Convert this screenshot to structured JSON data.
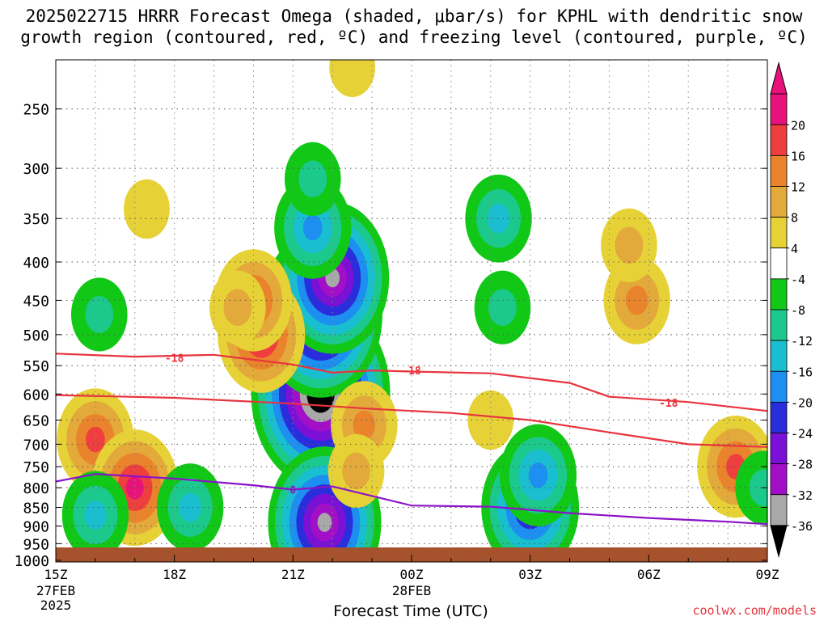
{
  "title_line1": "2025022715 HRRR Forecast Omega (shaded, μbar/s) for KPHL with dendritic snow",
  "title_line2": "growth region (contoured, red, ºC) and freezing level (contoured, purple, ºC)",
  "credit": "coolwx.com/models",
  "colors": {
    "omega_levels": [
      {
        "label": "20",
        "color": "#e8127a"
      },
      {
        "label": "16",
        "color": "#ee3e3e"
      },
      {
        "label": "12",
        "color": "#ea842c"
      },
      {
        "label": "8",
        "color": "#e3a93a"
      },
      {
        "label": "4",
        "color": "#e6d236"
      },
      {
        "label": "-4",
        "color": "#ffffff"
      },
      {
        "label": "-8",
        "color": "#11c817"
      },
      {
        "label": "-12",
        "color": "#1bc98d"
      },
      {
        "label": "-16",
        "color": "#19bfd0"
      },
      {
        "label": "-20",
        "color": "#1d8ff0"
      },
      {
        "label": "-24",
        "color": "#2a2ddc"
      },
      {
        "label": "-28",
        "color": "#7b10d6"
      },
      {
        "label": "-32",
        "color": "#a20fc7"
      },
      {
        "label": "-36",
        "color": "#a8a8a8"
      }
    ],
    "below_min": "#000000",
    "ground": "#a6522c",
    "dgz_line": "#e8343e",
    "freezing_line": "#8b12c8"
  },
  "chart_data": {
    "type": "heatmap",
    "title": "2025022715 HRRR Forecast Omega (shaded, μbar/s) for KPHL with dendritic snow growth region (contoured, red, ºC) and freezing level (contoured, purple, ºC)",
    "xlabel": "Forecast Time (UTC)",
    "ylabel": "",
    "x_ticks": [
      {
        "hour": 0,
        "label": "15Z",
        "sub": [
          "27FEB",
          "2025"
        ]
      },
      {
        "hour": 3,
        "label": "18Z",
        "sub": []
      },
      {
        "hour": 6,
        "label": "21Z",
        "sub": []
      },
      {
        "hour": 9,
        "label": "00Z",
        "sub": [
          "28FEB"
        ]
      },
      {
        "hour": 12,
        "label": "03Z",
        "sub": []
      },
      {
        "hour": 15,
        "label": "06Z",
        "sub": []
      },
      {
        "hour": 18,
        "label": "09Z",
        "sub": []
      }
    ],
    "xlim": [
      0,
      18
    ],
    "y_ticks": [
      250,
      300,
      350,
      400,
      450,
      500,
      550,
      600,
      650,
      700,
      750,
      800,
      850,
      900,
      950,
      1000
    ],
    "ylim": [
      1000,
      200
    ],
    "y_scale": "log-pressure",
    "grid": true,
    "colorbar_labels": [
      "20",
      "16",
      "12",
      "8",
      "4",
      "-4",
      "-8",
      "-12",
      "-16",
      "-20",
      "-24",
      "-28",
      "-32",
      "-36"
    ],
    "contours": [
      {
        "color": "red",
        "level_label": "-18",
        "points": [
          [
            0,
            530
          ],
          [
            2,
            535
          ],
          [
            4,
            532
          ],
          [
            5,
            540
          ],
          [
            6,
            548
          ],
          [
            7,
            562
          ],
          [
            8,
            558
          ],
          [
            9,
            560
          ],
          [
            11,
            563
          ],
          [
            13,
            580
          ],
          [
            14,
            605
          ],
          [
            16,
            615
          ],
          [
            18,
            632
          ]
        ],
        "label_positions": [
          [
            3,
            537
          ],
          [
            9,
            558
          ],
          [
            15.5,
            616
          ]
        ]
      },
      {
        "color": "red",
        "level_label": "",
        "points": [
          [
            0,
            602
          ],
          [
            3,
            607
          ],
          [
            6,
            618
          ],
          [
            8,
            628
          ],
          [
            10,
            636
          ],
          [
            12,
            650
          ],
          [
            14,
            675
          ],
          [
            16,
            700
          ],
          [
            18,
            706
          ]
        ],
        "label_positions": []
      },
      {
        "color": "purple",
        "level_label": "0",
        "points": [
          [
            0,
            785
          ],
          [
            1,
            767
          ],
          [
            3,
            778
          ],
          [
            5,
            794
          ],
          [
            6,
            805
          ],
          [
            7,
            797
          ],
          [
            9,
            845
          ],
          [
            11,
            848
          ],
          [
            13,
            865
          ],
          [
            15,
            878
          ],
          [
            17,
            888
          ],
          [
            18,
            895
          ]
        ],
        "label_positions": [
          [
            6,
            805
          ]
        ]
      }
    ],
    "omega_cells": [
      {
        "time": 6.7,
        "pressure": 600,
        "value": -40
      },
      {
        "time": 6.7,
        "pressure": 470,
        "value": -34
      },
      {
        "time": 7.0,
        "pressure": 420,
        "value": -30
      },
      {
        "time": 6.5,
        "pressure": 360,
        "value": -16
      },
      {
        "time": 6.5,
        "pressure": 310,
        "value": -8
      },
      {
        "time": 6.8,
        "pressure": 890,
        "value": -30
      },
      {
        "time": 5.2,
        "pressure": 500,
        "value": 20
      },
      {
        "time": 5.0,
        "pressure": 450,
        "value": 16
      },
      {
        "time": 4.6,
        "pressure": 460,
        "value": 8
      },
      {
        "time": 2.3,
        "pressure": 340,
        "value": 4
      },
      {
        "time": 1.1,
        "pressure": 470,
        "value": -8
      },
      {
        "time": 1.0,
        "pressure": 690,
        "value": 16
      },
      {
        "time": 2.0,
        "pressure": 800,
        "value": 20
      },
      {
        "time": 1.0,
        "pressure": 870,
        "value": -12
      },
      {
        "time": 3.4,
        "pressure": 850,
        "value": -12
      },
      {
        "time": 7.5,
        "pressure": 220,
        "value": 4
      },
      {
        "time": 7.8,
        "pressure": 660,
        "value": 12
      },
      {
        "time": 7.6,
        "pressure": 760,
        "value": 8
      },
      {
        "time": 11.2,
        "pressure": 350,
        "value": -12
      },
      {
        "time": 11.3,
        "pressure": 460,
        "value": -8
      },
      {
        "time": 11.0,
        "pressure": 650,
        "value": 4
      },
      {
        "time": 12.0,
        "pressure": 850,
        "value": -24
      },
      {
        "time": 12.2,
        "pressure": 770,
        "value": -16
      },
      {
        "time": 14.7,
        "pressure": 450,
        "value": 12
      },
      {
        "time": 14.5,
        "pressure": 380,
        "value": 8
      },
      {
        "time": 17.2,
        "pressure": 750,
        "value": 16
      },
      {
        "time": 17.9,
        "pressure": 800,
        "value": -8
      }
    ]
  }
}
